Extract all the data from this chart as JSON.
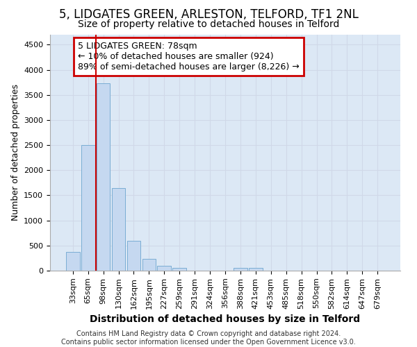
{
  "title1": "5, LIDGATES GREEN, ARLESTON, TELFORD, TF1 2NL",
  "title2": "Size of property relative to detached houses in Telford",
  "xlabel": "Distribution of detached houses by size in Telford",
  "ylabel": "Number of detached properties",
  "footer1": "Contains HM Land Registry data © Crown copyright and database right 2024.",
  "footer2": "Contains public sector information licensed under the Open Government Licence v3.0.",
  "categories": [
    "33sqm",
    "65sqm",
    "98sqm",
    "130sqm",
    "162sqm",
    "195sqm",
    "227sqm",
    "259sqm",
    "291sqm",
    "324sqm",
    "356sqm",
    "388sqm",
    "421sqm",
    "453sqm",
    "485sqm",
    "518sqm",
    "550sqm",
    "582sqm",
    "614sqm",
    "647sqm",
    "679sqm"
  ],
  "values": [
    375,
    2500,
    3730,
    1640,
    590,
    235,
    100,
    60,
    0,
    0,
    0,
    60,
    60,
    0,
    0,
    0,
    0,
    0,
    0,
    0,
    0
  ],
  "bar_color": "#c5d8f0",
  "bar_edge_color": "#7aadd4",
  "vline_x": 1.5,
  "vline_color": "#cc0000",
  "annotation_text": "5 LIDGATES GREEN: 78sqm\n← 10% of detached houses are smaller (924)\n89% of semi-detached houses are larger (8,226) →",
  "annotation_box_color": "white",
  "annotation_box_edge": "#cc0000",
  "ylim": [
    0,
    4700
  ],
  "yticks": [
    0,
    500,
    1000,
    1500,
    2000,
    2500,
    3000,
    3500,
    4000,
    4500
  ],
  "grid_color": "#d0d8e8",
  "bg_color": "#dce8f5",
  "title1_fontsize": 12,
  "title2_fontsize": 10,
  "xlabel_fontsize": 10,
  "ylabel_fontsize": 9,
  "tick_fontsize": 8,
  "annotation_fontsize": 9,
  "footer_fontsize": 7
}
